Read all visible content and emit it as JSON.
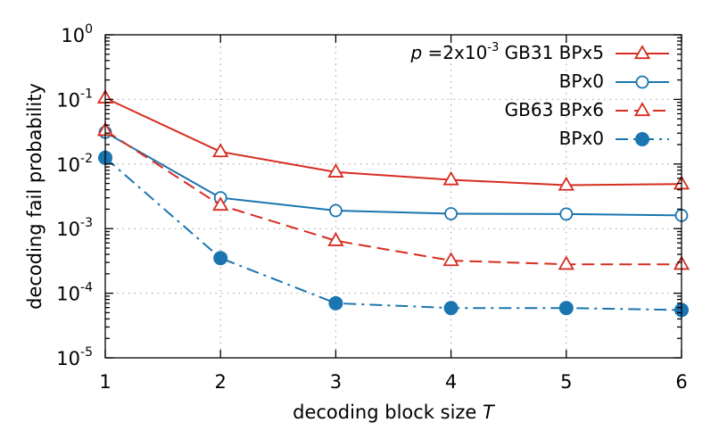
{
  "chart_data": {
    "type": "line",
    "xlabel": "decoding block size",
    "xlabel_var": "T",
    "ylabel": "decoding fail probability",
    "x": [
      1,
      2,
      3,
      4,
      5,
      6
    ],
    "xlim": [
      1,
      6
    ],
    "ylim": [
      1e-05,
      1
    ],
    "yscale": "log",
    "grid": true,
    "legend_position": "top-right",
    "x_tick_labels": [
      "1",
      "2",
      "3",
      "4",
      "5",
      "6"
    ],
    "y_tick_labels": [
      {
        "base": "10",
        "exp": "0",
        "value": 1
      },
      {
        "base": "10",
        "exp": "-1",
        "value": 0.1
      },
      {
        "base": "10",
        "exp": "-2",
        "value": 0.01
      },
      {
        "base": "10",
        "exp": "-3",
        "value": 0.001
      },
      {
        "base": "10",
        "exp": "-4",
        "value": 0.0001
      },
      {
        "base": "10",
        "exp": "-5",
        "value": 1e-05
      }
    ],
    "legend_prefix": {
      "p": "p",
      "eq": " =2x10",
      "exp": "-3"
    },
    "series": [
      {
        "name": "GB31 BPx5",
        "color": "#d62d20",
        "marker": "triangle-open",
        "line": "solid",
        "values": [
          0.105,
          0.0155,
          0.0075,
          0.0057,
          0.0047,
          0.0049
        ]
      },
      {
        "name": "BPx0",
        "color": "#1a75b0",
        "marker": "circle-open",
        "line": "solid",
        "values": [
          0.031,
          0.003,
          0.0019,
          0.0017,
          0.00168,
          0.0016
        ]
      },
      {
        "name": "GB63 BPx6",
        "color": "#d62d20",
        "marker": "triangle-open",
        "line": "dash",
        "values": [
          0.033,
          0.0023,
          0.00065,
          0.00032,
          0.00028,
          0.00028
        ]
      },
      {
        "name": "BPx0",
        "color": "#1a75b0",
        "marker": "circle-filled",
        "line": "dashdot",
        "values": [
          0.0125,
          0.00035,
          7e-05,
          5.9e-05,
          5.9e-05,
          5.5e-05
        ]
      }
    ]
  }
}
